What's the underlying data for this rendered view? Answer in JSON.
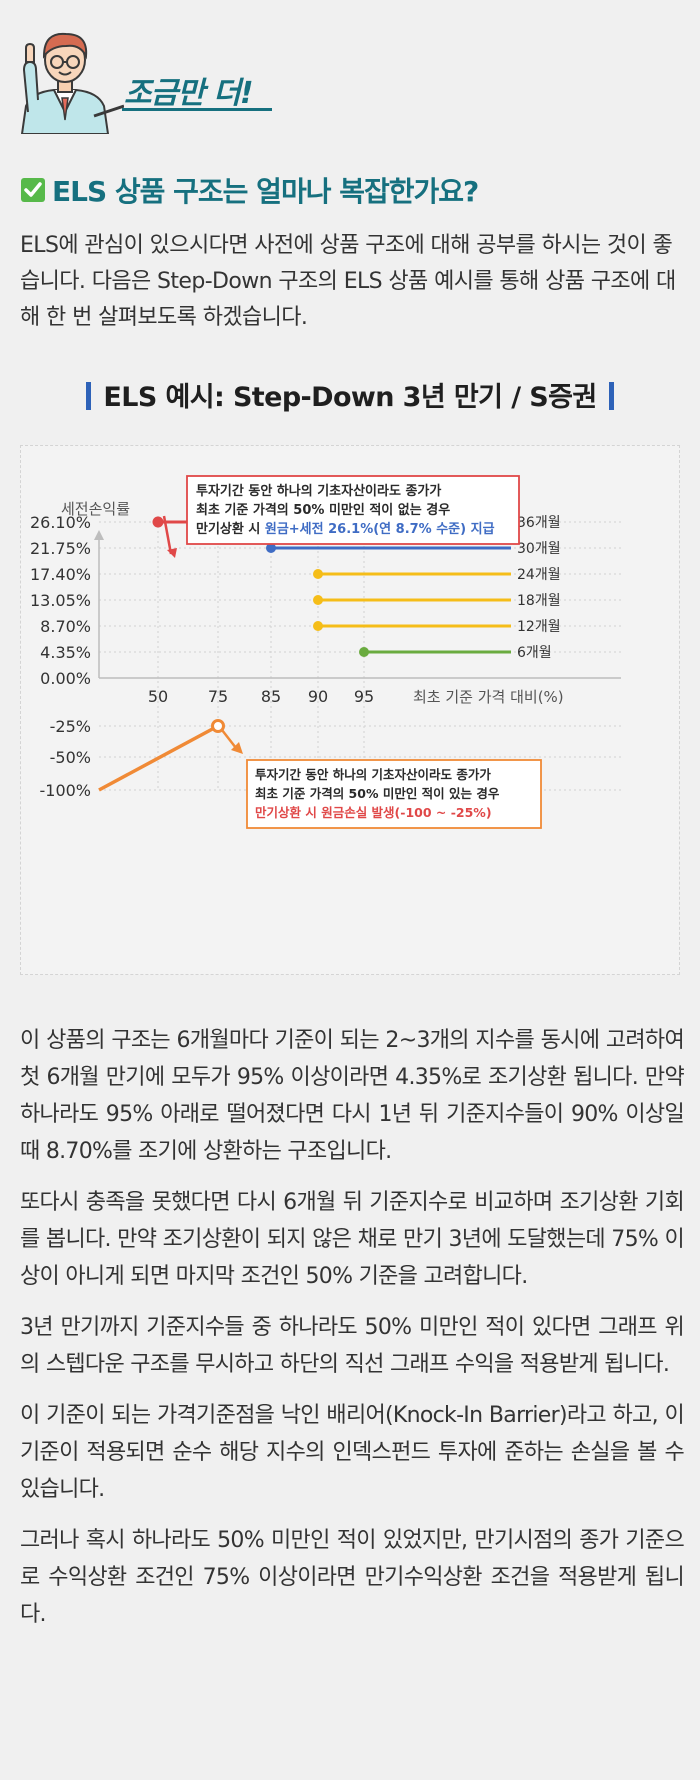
{
  "header": {
    "title": "조금만 더!"
  },
  "section": {
    "title": "ELS 상품 구조는 얼마나 복잡한가요?"
  },
  "intro": "ELS에 관심이 있으시다면 사전에 상품 구조에 대해 공부를 하시는 것이 좋습니다. 다음은 Step-Down 구조의 ELS 상품 예시를 통해 상품 구조에 대해 한 번 살펴보도록 하겠습니다.",
  "chart_heading": "ELS 예시: Step-Down 3년 만기 / S증권",
  "colors": {
    "accent": "#16707f",
    "purple": "#6b3aa0",
    "blue": "#3f6cc4",
    "yellow": "#f5bd18",
    "green": "#6aab3f",
    "red": "#e04848",
    "orange": "#f08a36"
  },
  "chart_data": {
    "type": "line",
    "ylabel": "세전손익률",
    "xlabel": "최초 기준 가격 대비(%)",
    "x_ticks": [
      "50",
      "75",
      "85",
      "90",
      "95"
    ],
    "y_ticks_upper": [
      "26.10%",
      "21.75%",
      "17.40%",
      "13.05%",
      "8.70%",
      "4.35%",
      "0.00%"
    ],
    "y_ticks_lower": [
      "-25%",
      "-50%",
      "-100%"
    ],
    "series": [
      {
        "name": "36개월",
        "threshold": 75,
        "return": 26.1,
        "color": "#6b3aa0"
      },
      {
        "name": "30개월",
        "threshold": 85,
        "return": 21.75,
        "color": "#3f6cc4"
      },
      {
        "name": "24개월",
        "threshold": 90,
        "return": 17.4,
        "color": "#f5bd18"
      },
      {
        "name": "18개월",
        "threshold": 90,
        "return": 13.05,
        "color": "#f5bd18"
      },
      {
        "name": "12개월",
        "threshold": 90,
        "return": 8.7,
        "color": "#f5bd18"
      },
      {
        "name": "6개월",
        "threshold": 95,
        "return": 4.35,
        "color": "#6aab3f"
      }
    ],
    "red_point": {
      "x": 50,
      "y": 26.1
    },
    "loss_line": {
      "points": [
        {
          "x": 0,
          "y": -100
        },
        {
          "x": 75,
          "y": -25
        }
      ]
    },
    "annotation_top": {
      "line1": "투자기간 동안 하나의 기초자산이라도 종가가",
      "line2": "최초 기준 가격의 50% 미만인 적이 없는 경우",
      "line3_prefix": "만기상환 시 ",
      "line3_highlight": "원금+세전 26.1%(연 8.7% 수준) 지급"
    },
    "annotation_bottom": {
      "line1": "투자기간 동안 하나의 기초자산이라도 종가가",
      "line2": "최초 기준 가격의 50% 미만인 적이 있는 경우",
      "line3": "만기상환 시 원금손실 발생(-100 ~ -25%)"
    }
  },
  "paragraphs": [
    "이 상품의 구조는 6개월마다 기준이 되는 2~3개의 지수를 동시에 고려하여 첫 6개월 만기에 모두가 95% 이상이라면 4.35%로 조기상환 됩니다. 만약 하나라도 95% 아래로 떨어졌다면 다시 1년 뒤 기준지수들이 90% 이상일 때 8.70%를 조기에 상환하는 구조입니다.",
    "또다시 충족을 못했다면 다시 6개월 뒤 기준지수로 비교하며 조기상환 기회를 봅니다. 만약 조기상환이 되지 않은 채로 만기 3년에 도달했는데 75% 이상이 아니게 되면 마지막 조건인 50% 기준을 고려합니다.",
    "3년 만기까지 기준지수들 중 하나라도 50% 미만인 적이 있다면 그래프 위의 스텝다운 구조를 무시하고 하단의 직선 그래프 수익을 적용받게 됩니다.",
    "이 기준이 되는 가격기준점을 낙인 배리어(Knock-In Barrier)라고 하고, 이 기준이 적용되면 순수 해당 지수의 인덱스펀드 투자에 준하는 손실을 볼 수 있습니다.",
    "그러나 혹시 하나라도 50% 미만인 적이 있었지만, 만기시점의 종가 기준으로 수익상환 조건인 75% 이상이라면 만기수익상환 조건을 적용받게 됩니다."
  ]
}
